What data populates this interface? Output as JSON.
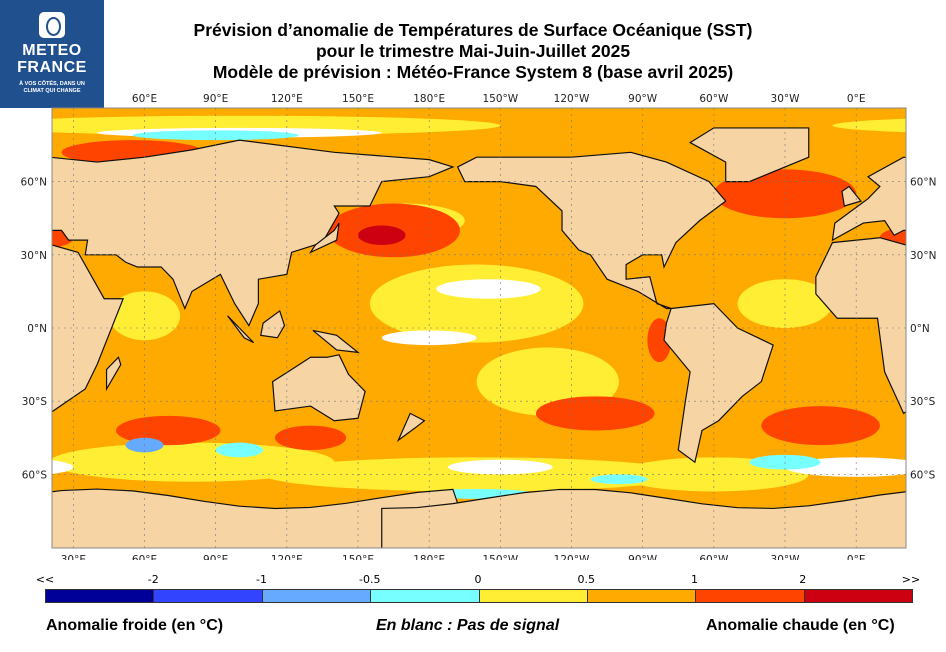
{
  "logo": {
    "name_line1": "METEO",
    "name_line2": "FRANCE",
    "tagline_line1": "À VOS CÔTÉS, DANS UN",
    "tagline_line2": "CLIMAT QUI CHANGE"
  },
  "title": {
    "line1": "Prévision d’anomalie de Températures de Surface Océanique (SST)",
    "line2": "pour le trimestre Mai-Juin-Juillet 2025",
    "line3": "Modèle de prévision : Météo-France System 8 (base avril 2025)"
  },
  "map": {
    "top_lon_labels": [
      "60°E",
      "90°E",
      "120°E",
      "150°E",
      "180°E",
      "150°W",
      "120°W",
      "90°W",
      "60°W",
      "30°W",
      "0°E"
    ],
    "bottom_lon_labels": [
      "30°E",
      "60°E",
      "90°E",
      "120°E",
      "150°E",
      "180°E",
      "150°W",
      "120°W",
      "90°W",
      "60°W",
      "30°W",
      "0°E"
    ],
    "lat_labels": [
      "60°N",
      "30°N",
      "0°N",
      "30°S",
      "60°S"
    ],
    "land_color": "#f7d4a4"
  },
  "colorbar": {
    "labels": [
      "<<",
      "-2",
      "-1",
      "-0.5",
      "0",
      "0.5",
      "1",
      "2",
      ">>"
    ],
    "colors": [
      "#000099",
      "#3344ff",
      "#66aaff",
      "#77ffff",
      "#ffee33",
      "#ffaa00",
      "#ff4400",
      "#cc0011"
    ]
  },
  "legend": {
    "cold": "Anomalie froide (en °C)",
    "no_signal": "En blanc : Pas de signal",
    "warm": "Anomalie chaude (en °C)"
  }
}
